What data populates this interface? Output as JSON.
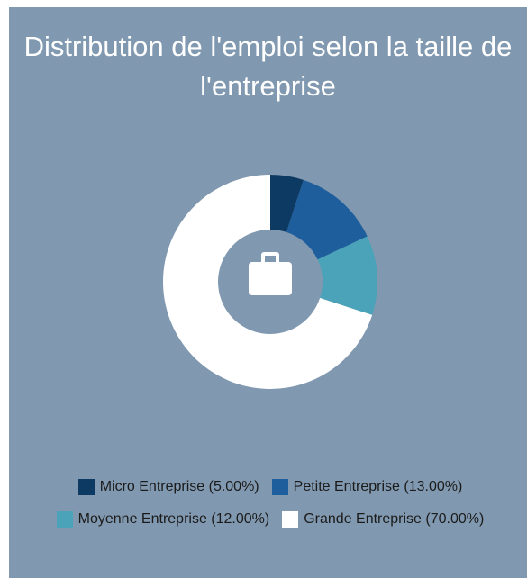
{
  "chart_data": {
    "type": "donut",
    "title": "Distribution de l'emploi selon la taille de l'entreprise",
    "categories": [
      "Micro Entreprise (5.00%)",
      "Petite Entreprise (13.00%)",
      "Moyenne Entreprise (12.00%)",
      "Grande Entreprise (70.00%)"
    ],
    "values": [
      5,
      13,
      12,
      70
    ],
    "colors": [
      "#0d3a63",
      "#1f5e9c",
      "#4aa3b8",
      "#ffffff"
    ]
  }
}
